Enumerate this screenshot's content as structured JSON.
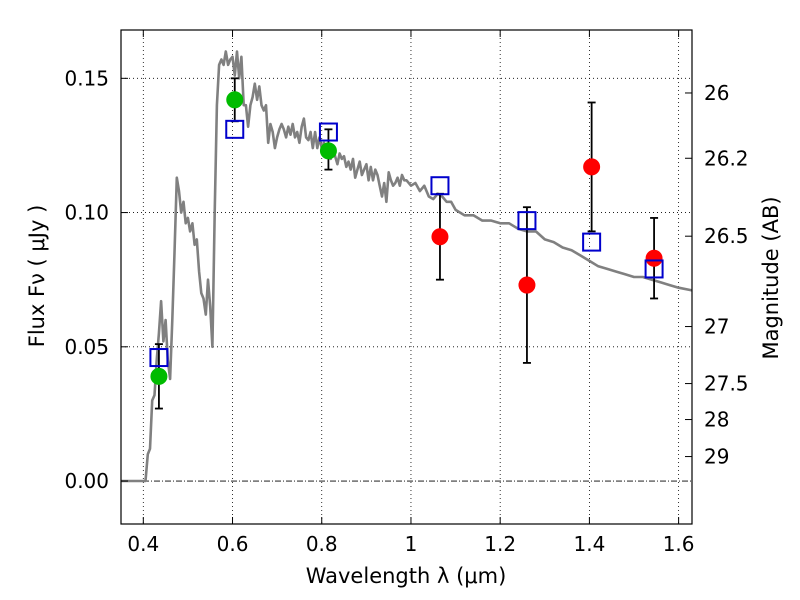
{
  "chart_data": {
    "type": "scatter",
    "xlabel": "Wavelength  λ (μm)",
    "ylabel": "Flux  Fν  ( μJy )",
    "y2label": "Magnitude (AB)",
    "xlim": [
      0.35,
      1.63
    ],
    "ylim": [
      -0.016,
      0.168
    ],
    "grid": true,
    "x_ticks": [
      {
        "value": 0.4,
        "label": "0.4"
      },
      {
        "value": 0.6,
        "label": "0.6"
      },
      {
        "value": 0.8,
        "label": "0.8"
      },
      {
        "value": 1.0,
        "label": "1"
      },
      {
        "value": 1.2,
        "label": "1.2"
      },
      {
        "value": 1.4,
        "label": "1.4"
      },
      {
        "value": 1.6,
        "label": "1.6"
      }
    ],
    "y_ticks": [
      {
        "value": 0.0,
        "label": "0.00"
      },
      {
        "value": 0.05,
        "label": "0.05"
      },
      {
        "value": 0.1,
        "label": "0.10"
      },
      {
        "value": 0.15,
        "label": "0.15"
      }
    ],
    "mag_ticks": [
      {
        "label": "26",
        "mag": 26
      },
      {
        "label": "26.2",
        "mag": 26.2
      },
      {
        "label": "26.5",
        "mag": 26.5
      },
      {
        "label": "27",
        "mag": 27
      },
      {
        "label": "27.5",
        "mag": 27.5
      },
      {
        "label": "28",
        "mag": 28
      },
      {
        "label": "29",
        "mag": 29
      }
    ],
    "model_spectrum": {
      "color": "#808080",
      "points": [
        [
          0.35,
          0.0
        ],
        [
          0.4,
          0.0
        ],
        [
          0.405,
          0.0
        ],
        [
          0.41,
          0.01
        ],
        [
          0.415,
          0.012
        ],
        [
          0.42,
          0.03
        ],
        [
          0.425,
          0.032
        ],
        [
          0.43,
          0.045
        ],
        [
          0.435,
          0.055
        ],
        [
          0.44,
          0.067
        ],
        [
          0.445,
          0.052
        ],
        [
          0.45,
          0.06
        ],
        [
          0.455,
          0.045
        ],
        [
          0.46,
          0.038
        ],
        [
          0.465,
          0.06
        ],
        [
          0.47,
          0.085
        ],
        [
          0.475,
          0.113
        ],
        [
          0.48,
          0.108
        ],
        [
          0.485,
          0.1
        ],
        [
          0.49,
          0.104
        ],
        [
          0.495,
          0.096
        ],
        [
          0.5,
          0.098
        ],
        [
          0.505,
          0.093
        ],
        [
          0.51,
          0.096
        ],
        [
          0.515,
          0.088
        ],
        [
          0.52,
          0.09
        ],
        [
          0.525,
          0.078
        ],
        [
          0.53,
          0.07
        ],
        [
          0.535,
          0.068
        ],
        [
          0.54,
          0.062
        ],
        [
          0.545,
          0.075
        ],
        [
          0.55,
          0.065
        ],
        [
          0.555,
          0.05
        ],
        [
          0.56,
          0.1
        ],
        [
          0.565,
          0.14
        ],
        [
          0.57,
          0.155
        ],
        [
          0.575,
          0.157
        ],
        [
          0.58,
          0.155
        ],
        [
          0.585,
          0.16
        ],
        [
          0.59,
          0.155
        ],
        [
          0.595,
          0.157
        ],
        [
          0.6,
          0.158
        ],
        [
          0.605,
          0.151
        ],
        [
          0.61,
          0.16
        ],
        [
          0.615,
          0.15
        ],
        [
          0.62,
          0.158
        ],
        [
          0.625,
          0.14
        ],
        [
          0.63,
          0.14
        ],
        [
          0.635,
          0.132
        ],
        [
          0.64,
          0.14
        ],
        [
          0.645,
          0.143
        ],
        [
          0.65,
          0.148
        ],
        [
          0.655,
          0.142
        ],
        [
          0.66,
          0.147
        ],
        [
          0.665,
          0.14
        ],
        [
          0.67,
          0.138
        ],
        [
          0.675,
          0.14
        ],
        [
          0.68,
          0.126
        ],
        [
          0.685,
          0.133
        ],
        [
          0.69,
          0.13
        ],
        [
          0.695,
          0.124
        ],
        [
          0.7,
          0.128
        ],
        [
          0.705,
          0.131
        ],
        [
          0.71,
          0.133
        ],
        [
          0.715,
          0.131
        ],
        [
          0.72,
          0.128
        ],
        [
          0.725,
          0.132
        ],
        [
          0.73,
          0.129
        ],
        [
          0.735,
          0.133
        ],
        [
          0.74,
          0.128
        ],
        [
          0.745,
          0.13
        ],
        [
          0.75,
          0.126
        ],
        [
          0.755,
          0.132
        ],
        [
          0.76,
          0.135
        ],
        [
          0.765,
          0.128
        ],
        [
          0.77,
          0.127
        ],
        [
          0.775,
          0.13
        ],
        [
          0.78,
          0.124
        ],
        [
          0.785,
          0.13
        ],
        [
          0.79,
          0.124
        ],
        [
          0.795,
          0.128
        ],
        [
          0.8,
          0.124
        ],
        [
          0.805,
          0.126
        ],
        [
          0.81,
          0.123
        ],
        [
          0.815,
          0.124
        ],
        [
          0.82,
          0.12
        ],
        [
          0.825,
          0.125
        ],
        [
          0.83,
          0.121
        ],
        [
          0.835,
          0.118
        ],
        [
          0.84,
          0.122
        ],
        [
          0.845,
          0.12
        ],
        [
          0.85,
          0.121
        ],
        [
          0.855,
          0.117
        ],
        [
          0.86,
          0.119
        ],
        [
          0.865,
          0.116
        ],
        [
          0.87,
          0.12
        ],
        [
          0.875,
          0.113
        ],
        [
          0.88,
          0.116
        ],
        [
          0.885,
          0.119
        ],
        [
          0.89,
          0.114
        ],
        [
          0.895,
          0.116
        ],
        [
          0.9,
          0.118
        ],
        [
          0.905,
          0.112
        ],
        [
          0.91,
          0.117
        ],
        [
          0.915,
          0.112
        ],
        [
          0.92,
          0.116
        ],
        [
          0.925,
          0.114
        ],
        [
          0.93,
          0.11
        ],
        [
          0.935,
          0.106
        ],
        [
          0.94,
          0.111
        ],
        [
          0.945,
          0.104
        ],
        [
          0.95,
          0.115
        ],
        [
          0.955,
          0.112
        ],
        [
          0.96,
          0.11
        ],
        [
          0.965,
          0.111
        ],
        [
          0.97,
          0.113
        ],
        [
          0.975,
          0.11
        ],
        [
          0.98,
          0.114
        ],
        [
          0.985,
          0.112
        ],
        [
          0.99,
          0.112
        ],
        [
          1.0,
          0.11
        ],
        [
          1.01,
          0.111
        ],
        [
          1.02,
          0.108
        ],
        [
          1.03,
          0.11
        ],
        [
          1.04,
          0.106
        ],
        [
          1.05,
          0.105
        ],
        [
          1.06,
          0.107
        ],
        [
          1.07,
          0.106
        ],
        [
          1.08,
          0.104
        ],
        [
          1.09,
          0.104
        ],
        [
          1.1,
          0.101
        ],
        [
          1.12,
          0.099
        ],
        [
          1.14,
          0.099
        ],
        [
          1.16,
          0.097
        ],
        [
          1.18,
          0.097
        ],
        [
          1.2,
          0.096
        ],
        [
          1.22,
          0.096
        ],
        [
          1.24,
          0.094
        ],
        [
          1.26,
          0.093
        ],
        [
          1.28,
          0.093
        ],
        [
          1.3,
          0.09
        ],
        [
          1.32,
          0.089
        ],
        [
          1.34,
          0.087
        ],
        [
          1.36,
          0.086
        ],
        [
          1.38,
          0.084
        ],
        [
          1.4,
          0.082
        ],
        [
          1.42,
          0.08
        ],
        [
          1.44,
          0.079
        ],
        [
          1.46,
          0.078
        ],
        [
          1.48,
          0.077
        ],
        [
          1.5,
          0.076
        ],
        [
          1.52,
          0.076
        ],
        [
          1.54,
          0.075
        ],
        [
          1.56,
          0.074
        ],
        [
          1.58,
          0.073
        ],
        [
          1.6,
          0.072
        ],
        [
          1.63,
          0.071
        ]
      ]
    },
    "series": [
      {
        "marker": "circle",
        "color": "#00bb00",
        "points": [
          {
            "x": 0.435,
            "y": 0.039,
            "err_lo": 0.012,
            "err_hi": 0.012
          },
          {
            "x": 0.605,
            "y": 0.142,
            "err_lo": 0.008,
            "err_hi": 0.008
          },
          {
            "x": 0.815,
            "y": 0.123,
            "err_lo": 0.007,
            "err_hi": 0.008
          }
        ]
      },
      {
        "marker": "circle",
        "color": "#ff0000",
        "points": [
          {
            "x": 1.065,
            "y": 0.091,
            "err_lo": 0.016,
            "err_hi": 0.016
          },
          {
            "x": 1.26,
            "y": 0.073,
            "err_lo": 0.029,
            "err_hi": 0.029
          },
          {
            "x": 1.405,
            "y": 0.117,
            "err_lo": 0.024,
            "err_hi": 0.024
          },
          {
            "x": 1.545,
            "y": 0.083,
            "err_lo": 0.015,
            "err_hi": 0.015
          }
        ]
      },
      {
        "marker": "square-open",
        "color": "#0000cc",
        "points": [
          {
            "x": 0.435,
            "y": 0.046
          },
          {
            "x": 0.605,
            "y": 0.131
          },
          {
            "x": 0.815,
            "y": 0.13
          },
          {
            "x": 1.065,
            "y": 0.11
          },
          {
            "x": 1.26,
            "y": 0.097
          },
          {
            "x": 1.405,
            "y": 0.089
          },
          {
            "x": 1.545,
            "y": 0.079
          }
        ]
      }
    ]
  }
}
